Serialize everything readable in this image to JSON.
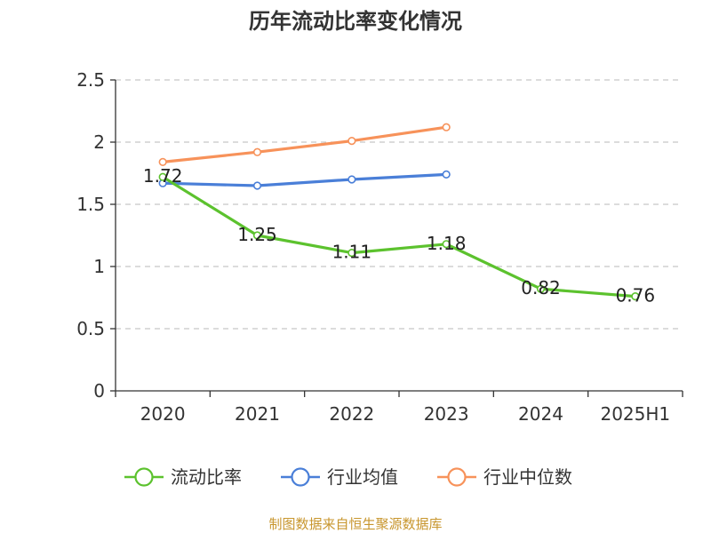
{
  "chart_data": {
    "type": "line",
    "title": "历年流动比率变化情况",
    "categories": [
      "2020",
      "2021",
      "2022",
      "2023",
      "2024",
      "2025H1"
    ],
    "ylim": [
      0,
      2.5
    ],
    "yticks": [
      "0",
      "0.5",
      "1",
      "1.5",
      "2",
      "2.5"
    ],
    "grid": true,
    "legend_position": "bottom",
    "series": [
      {
        "name": "流动比率",
        "color": "#5cc22e",
        "values": [
          1.72,
          1.25,
          1.11,
          1.18,
          0.82,
          0.76
        ],
        "labels": [
          "1.72",
          "1.25",
          "1.11",
          "1.18",
          "0.82",
          "0.76"
        ]
      },
      {
        "name": "行业均值",
        "color": "#4a7fd8",
        "values": [
          1.67,
          1.65,
          1.7,
          1.74,
          null,
          null
        ]
      },
      {
        "name": "行业中位数",
        "color": "#f7925a",
        "values": [
          1.84,
          1.92,
          2.01,
          2.12,
          null,
          null
        ]
      }
    ]
  },
  "footer": {
    "source": "制图数据来自恒生聚源数据库"
  }
}
